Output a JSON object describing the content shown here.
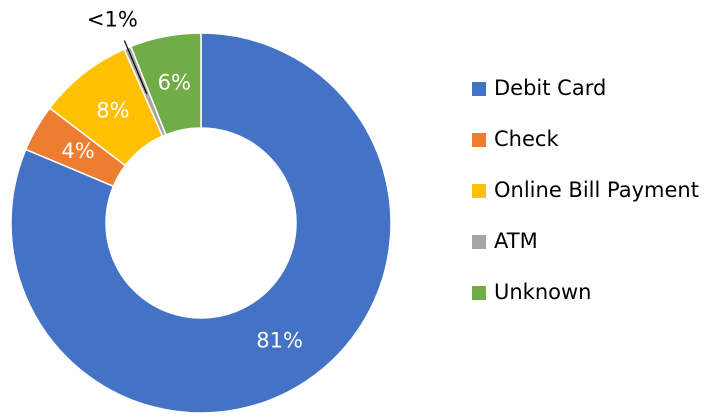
{
  "chart_data": {
    "type": "donut",
    "categories": [
      "Debit Card",
      "Check",
      "Online Bill Payment",
      "ATM",
      "Unknown"
    ],
    "values": [
      81,
      4,
      8,
      0.6,
      6
    ],
    "value_labels": [
      "81%",
      "4%",
      "8%",
      "<1%",
      "6%"
    ],
    "colors": [
      "#4472c4",
      "#ed7d31",
      "#ffc000",
      "#a5a5a5",
      "#70ad47"
    ],
    "legend": "right"
  }
}
